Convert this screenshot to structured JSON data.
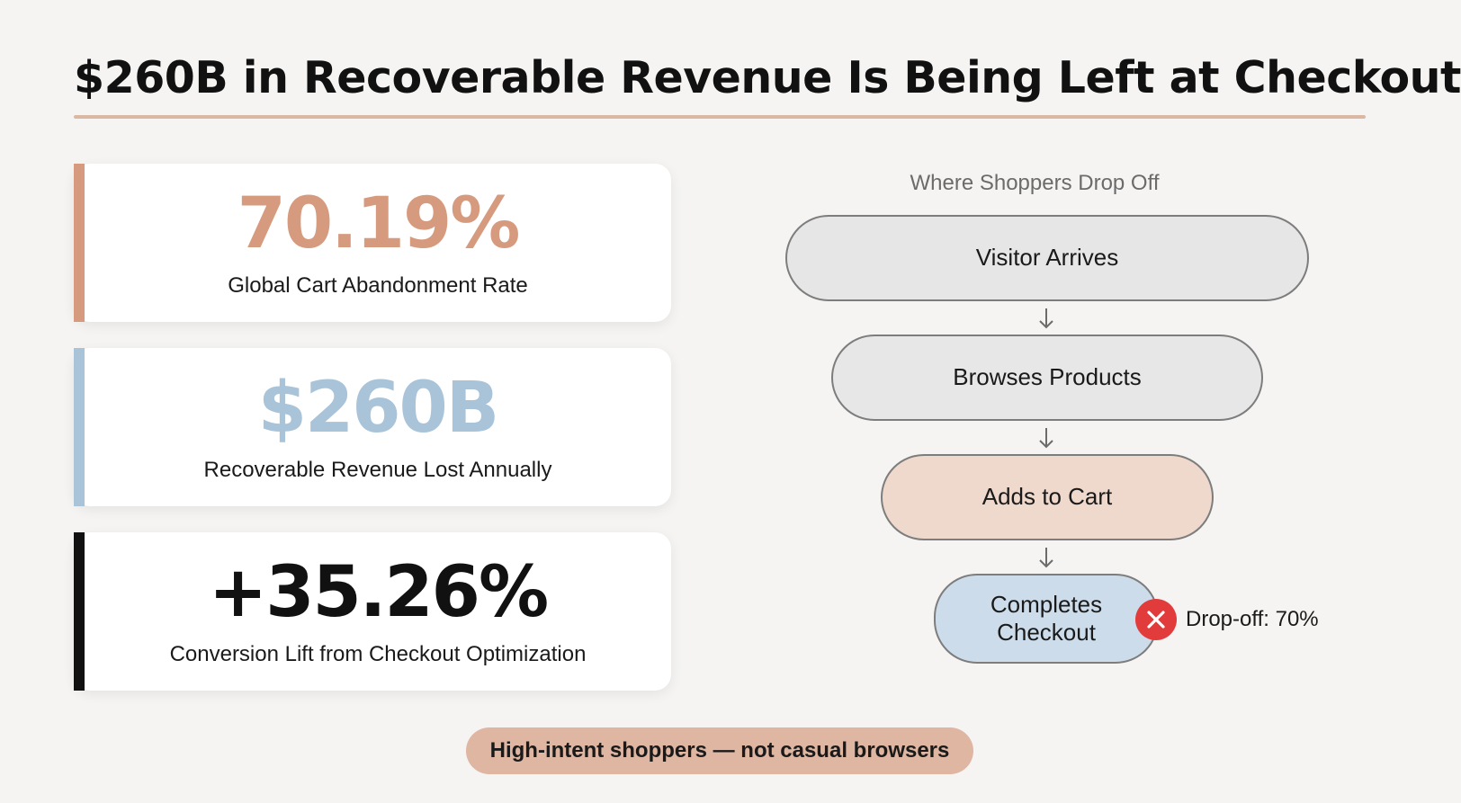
{
  "title": "$260B in Recoverable Revenue Is Being Left at Checkout",
  "colors": {
    "accent_orange": "#d69a7e",
    "accent_blue": "#a9c3d8",
    "accent_black": "#111111",
    "drop_red": "#e23b3b",
    "pill_bg": "#deb6a2"
  },
  "stats": [
    {
      "value": "70.19%",
      "label": "Global Cart Abandonment Rate"
    },
    {
      "value": "$260B",
      "label": "Recoverable Revenue Lost Annually"
    },
    {
      "value": "+35.26%",
      "label": "Conversion Lift from Checkout Optimization"
    }
  ],
  "funnel": {
    "title": "Where Shoppers Drop Off",
    "stages": [
      "Visitor Arrives",
      "Browses Products",
      "Adds to Cart",
      "Completes Checkout"
    ],
    "dropoff": {
      "icon": "close-icon",
      "label": "Drop-off: 70%"
    }
  },
  "footer_pill": "High-intent shoppers — not casual browsers"
}
